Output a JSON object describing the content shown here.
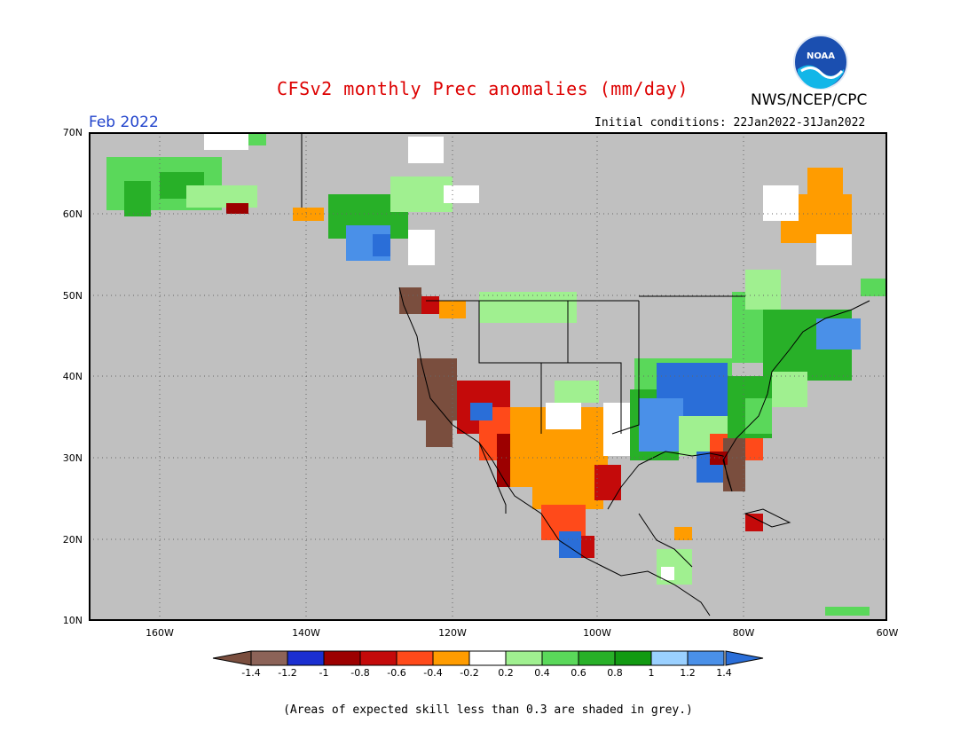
{
  "header": {
    "title": "CFSv2 monthly Prec anomalies (mm/day)",
    "title_color": "#dd0000",
    "organization": "NWS/NCEP/CPC",
    "logo_text": "NOAA",
    "target_month": "Feb 2022",
    "target_month_color": "#2244cc",
    "initial_conditions": "Initial conditions: 22Jan2022-31Jan2022"
  },
  "map": {
    "background_color": "#c0c0c0",
    "lat_labels": [
      "70N",
      "60N",
      "50N",
      "40N",
      "30N",
      "20N",
      "10N"
    ],
    "lon_labels": [
      "160W",
      "140W",
      "120W",
      "100W",
      "80W",
      "60W"
    ]
  },
  "colorbar": {
    "labels": [
      "-1.4",
      "-1.2",
      "-1",
      "-0.8",
      "-0.6",
      "-0.4",
      "-0.2",
      "0.2",
      "0.4",
      "0.6",
      "0.8",
      "1",
      "1.2",
      "1.4"
    ],
    "colors": [
      "#7a4e3e",
      "#8c6358",
      "#1b2fd0",
      "#9c0000",
      "#c40a0a",
      "#ff4a1a",
      "#ff9c00",
      "#ffffff",
      "#a0f090",
      "#5ad85a",
      "#28b028",
      "#129a12",
      "#9ad0ff",
      "#4a90e8",
      "#2a6ed8"
    ]
  },
  "footer": {
    "note": "(Areas of expected skill less than 0.3 are shaded in grey.)"
  }
}
